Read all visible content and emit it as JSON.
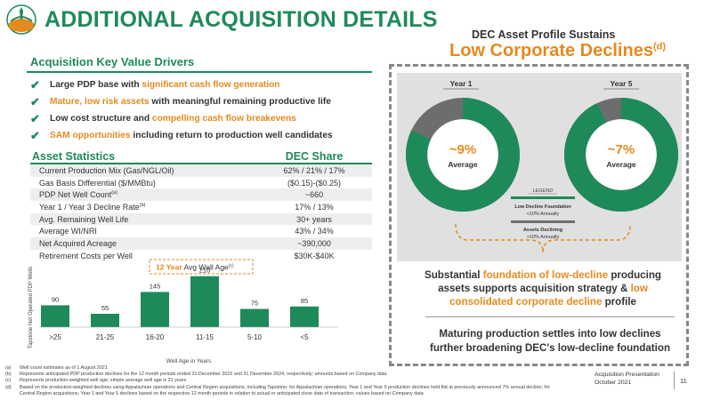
{
  "header": {
    "title": "ADDITIONAL ACQUISITION DETAILS"
  },
  "colors": {
    "green": "#1e8a5a",
    "orange": "#e58a1f",
    "gray": "#6d6d6d"
  },
  "key_drivers": {
    "heading": "Acquisition Key Value Drivers",
    "items": [
      {
        "before": "Large PDP base with ",
        "highlight": "significant cash flow generation",
        "after": ""
      },
      {
        "before": "",
        "highlight": "Mature, low risk assets",
        "after": " with meaningful remaining productive life"
      },
      {
        "before": "Low cost structure and ",
        "highlight": "compelling cash flow breakevens",
        "after": ""
      },
      {
        "before": "",
        "highlight": "SAM opportunities",
        "after": " including return to production well candidates"
      }
    ]
  },
  "asset_stats": {
    "heading": "Asset Statistics",
    "share_heading": "DEC Share",
    "rows": [
      {
        "label": "Current Production Mix (Gas/NGL/Oil)",
        "sup": "",
        "value": "62% / 21% / 17%"
      },
      {
        "label": "Gas Basis Differential ($/MMBtu)",
        "sup": "",
        "value": "($0.15)-($0.25)"
      },
      {
        "label": "PDP Net Well Count",
        "sup": "(a)",
        "value": "~660"
      },
      {
        "label": "Year 1 / Year 3 Decline Rate",
        "sup": "(b)",
        "value": "17% / 13%"
      },
      {
        "label": "Avg. Remaining Well Life",
        "sup": "",
        "value": "30+ years"
      },
      {
        "label": "Average WI/NRI",
        "sup": "",
        "value": "43% / 34%"
      },
      {
        "label": "Net Acquired Acreage",
        "sup": "",
        "value": "~390,000"
      },
      {
        "label": "Retirement Costs per Well",
        "sup": "",
        "value": "$30K-$40K"
      }
    ]
  },
  "chart_data": {
    "type": "bar",
    "categories": [
      ">25",
      "21-25",
      "16-20",
      "11-15",
      "5-10",
      "<5"
    ],
    "values": [
      90,
      55,
      145,
      210,
      75,
      85
    ],
    "ylabel": "Tapstone Net Operated PDP Wells",
    "xlabel": "Well Age in Years",
    "ylim": [
      0,
      220
    ],
    "annotation": {
      "highlight": "12 Year",
      "text": " Avg Well Age",
      "sup": "(c)"
    },
    "bar_color": "#1e8a5a"
  },
  "decline_profile": {
    "subtitle": "DEC Asset Profile Sustains",
    "title": "Low Corporate Declines",
    "title_sup": "(d)",
    "year1": {
      "label": "Year 1",
      "value": "~9%",
      "caption": "Average",
      "low_decline_share": 0.82
    },
    "year5": {
      "label": "Year 5",
      "value": "~7%",
      "caption": "Average",
      "low_decline_share": 0.93
    },
    "legend": {
      "title": "LEGEND",
      "low_label": "Low Decline Foundation",
      "low_sub": "<10% Annually",
      "declining_label": "Assets Declining",
      "declining_sub": ">10% Annually"
    },
    "summary": {
      "p1": "Substantial ",
      "h1": "foundation of low-decline",
      "p2": " producing assets supports acquisition strategy & ",
      "h2": "low consolidated corporate decline",
      "p3": " profile"
    },
    "bottom_line1": "Maturing production settles into low declines",
    "bottom_line2": "further broadening DEC's low-decline foundation"
  },
  "footnotes": [
    {
      "key": "(a)",
      "text": "Well count estimates as of 1 August 2021"
    },
    {
      "key": "(b)",
      "text": "Represents anticipated PDP production declines for the 12 month periods ended 31 December 2022 and 31 December 2024, respectively; amounts based on Company data"
    },
    {
      "key": "(c)",
      "text": "Represents production-weighted well age; simple average well age is 21 years"
    },
    {
      "key": "(d)",
      "text": "Based on the production-weighted declines using Appalachian operations and Central Region acquisitions, including Tapstone; for Appalachian operations, Year 1 and Year 5 production declines held flat at previously announced 7% annual decline; for Central Region acquisitions, Year 1 and Year 5 declines based on the respective 12 month periods in relation to actual or anticipated close date of transaction; values based on Company data"
    }
  ],
  "footer": {
    "line1": "Acquisition Presentation",
    "line2": "October 2021",
    "page": "11"
  }
}
